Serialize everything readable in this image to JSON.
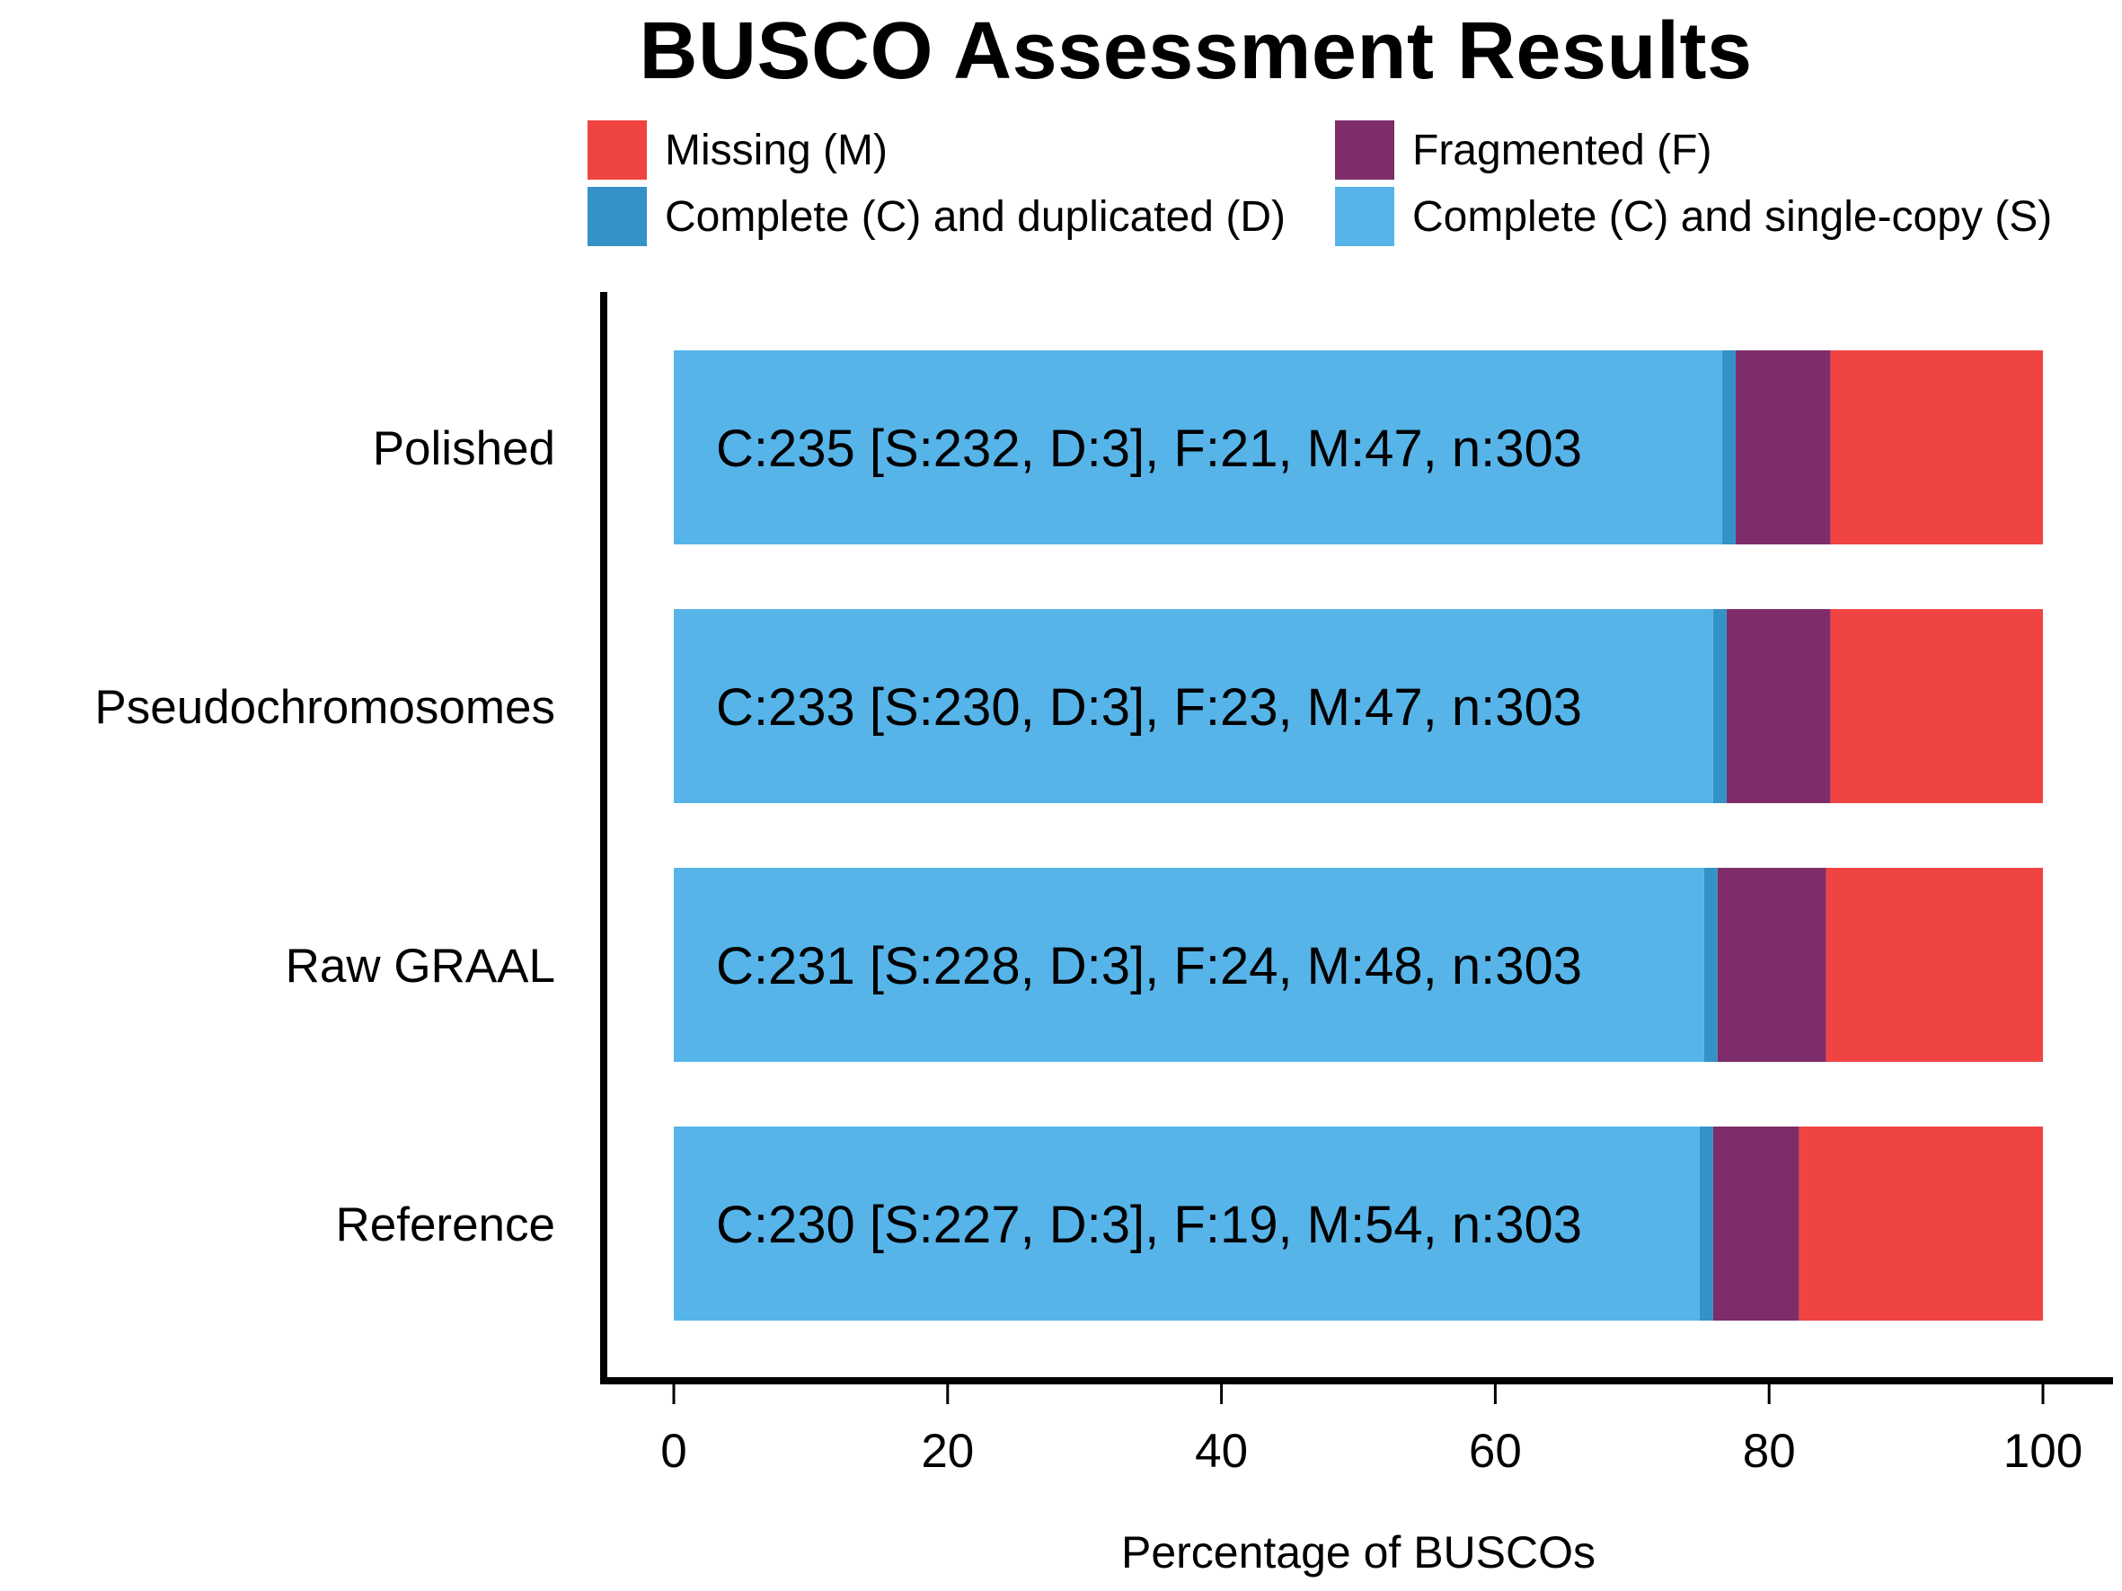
{
  "chart_data": {
    "type": "bar",
    "orientation": "horizontal",
    "stacked": true,
    "title": "BUSCO Assessment Results",
    "xlabel": "Percentage of BUSCOs",
    "ylabel": "",
    "xlim": [
      0,
      100
    ],
    "xticks": [
      "0",
      "20",
      "40",
      "60",
      "80",
      "100"
    ],
    "categories": [
      "Polished",
      "Pseudochromosomes",
      "Raw GRAAL",
      "Reference"
    ],
    "series": [
      {
        "name": "Complete (C) and single-copy (S)",
        "color": "#56B4E9",
        "values": [
          76.57,
          75.91,
          75.25,
          74.92
        ]
      },
      {
        "name": "Complete (C) and duplicated (D)",
        "color": "#3492C7",
        "values": [
          0.99,
          0.99,
          0.99,
          0.99
        ]
      },
      {
        "name": "Fragmented (F)",
        "color": "#7E2D6A",
        "values": [
          6.93,
          7.59,
          7.92,
          6.27
        ]
      },
      {
        "name": "Missing (M)",
        "color": "#F04442",
        "values": [
          15.51,
          15.51,
          15.84,
          17.82
        ]
      }
    ],
    "bar_labels": [
      "C:235 [S:232, D:3], F:21, M:47, n:303",
      "C:233 [S:230, D:3], F:23, M:47, n:303",
      "C:231 [S:228, D:3], F:24, M:48, n:303",
      "C:230 [S:227, D:3], F:19, M:54, n:303"
    ],
    "legend": {
      "placement": "top",
      "entries": [
        "Missing (M)",
        "Fragmented (F)",
        "Complete (C) and duplicated (D)",
        "Complete (C) and single-copy (S)"
      ]
    },
    "grid": false
  }
}
